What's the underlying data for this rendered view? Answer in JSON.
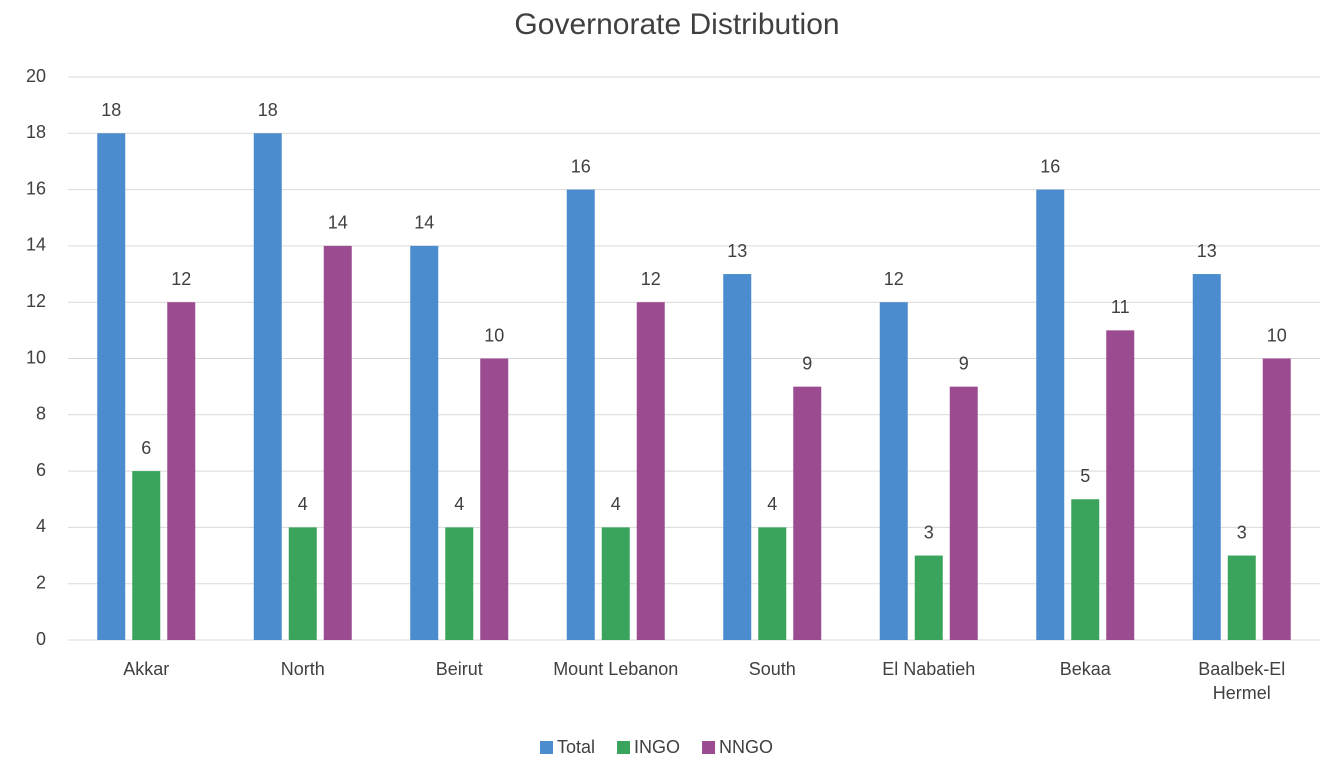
{
  "chart_data": {
    "type": "bar",
    "title": "Governorate Distribution",
    "categories": [
      "Akkar",
      "North",
      "Beirut",
      "Mount Lebanon",
      "South",
      "El Nabatieh",
      "Bekaa",
      "Baalbek-El Hermel"
    ],
    "series": [
      {
        "name": "Total",
        "color": "#4a8ccd",
        "values": [
          18,
          18,
          14,
          16,
          13,
          12,
          16,
          13
        ]
      },
      {
        "name": "INGO",
        "color": "#3aa45c",
        "values": [
          6,
          4,
          4,
          4,
          4,
          3,
          5,
          3
        ]
      },
      {
        "name": "NNGO",
        "color": "#9b4c91",
        "values": [
          12,
          14,
          10,
          12,
          9,
          9,
          11,
          10
        ]
      }
    ],
    "ylim": [
      0,
      20
    ],
    "yticks": [
      0,
      2,
      4,
      6,
      8,
      10,
      12,
      14,
      16,
      18,
      20
    ],
    "grid": true,
    "legend": "bottom"
  }
}
